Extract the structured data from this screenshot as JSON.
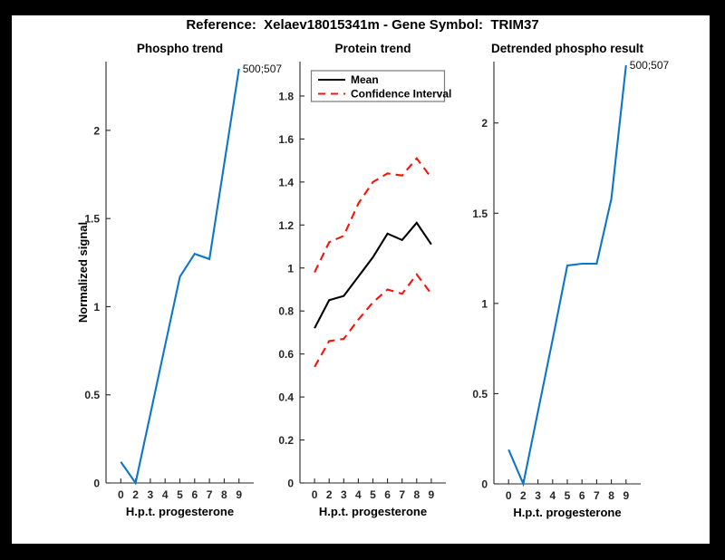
{
  "figure": {
    "title": "Reference:  Xelaev18015341m - Gene Symbol:  TRIM37",
    "background": "#000000",
    "canvas_color": "#ffffff"
  },
  "colors": {
    "blue": "#0d76c9",
    "red": "#f6140c",
    "black": "#000000",
    "axis": "#262626",
    "legend_border": "#7a7a7a"
  },
  "chart_data": [
    {
      "type": "line",
      "title": "Phospho trend",
      "xlabel": "H.p.t. progesterone",
      "ylabel": "Normalized signal",
      "x_tick_labels": [
        "0",
        "2",
        "3",
        "4",
        "5",
        "6",
        "7",
        "8",
        "9"
      ],
      "ylim": [
        0,
        2.39
      ],
      "yticks": {
        "values": [
          0,
          0.5,
          1,
          1.5,
          2
        ],
        "labels": [
          "0",
          "0.5",
          "1",
          "1.5",
          "2"
        ]
      },
      "grid": false,
      "series": [
        {
          "name": "phospho-signal",
          "color": "blue",
          "dash": false,
          "values": [
            0.12,
            0,
            0.39,
            0.78,
            1.17,
            1.3,
            1.27,
            1.81,
            2.35
          ]
        }
      ],
      "annotation": {
        "text": "500;507"
      }
    },
    {
      "type": "line",
      "title": "Protein trend",
      "xlabel": "H.p.t. progesterone",
      "ylabel": "",
      "x_tick_labels": [
        "0",
        "2",
        "3",
        "4",
        "5",
        "6",
        "7",
        "8",
        "9"
      ],
      "ylim": [
        0,
        1.96
      ],
      "yticks": {
        "values": [
          0,
          0.2,
          0.4,
          0.6,
          0.8,
          1,
          1.2,
          1.4,
          1.6,
          1.8
        ],
        "labels": [
          "0",
          "0.2",
          "0.4",
          "0.6",
          "0.8",
          "1",
          "1.2",
          "1.4",
          "1.6",
          "1.8"
        ]
      },
      "grid": false,
      "legend": {
        "position": "top-left",
        "entries": [
          {
            "label": "Mean",
            "color": "black",
            "dash": false
          },
          {
            "label": "Confidence Interval",
            "color": "red",
            "dash": true
          }
        ]
      },
      "series": [
        {
          "name": "mean-line",
          "color": "black",
          "dash": false,
          "values": [
            0.72,
            0.85,
            0.87,
            0.96,
            1.05,
            1.16,
            1.13,
            1.21,
            1.11
          ]
        },
        {
          "name": "confidence-upper-line",
          "color": "red",
          "dash": true,
          "values": [
            0.98,
            1.12,
            1.15,
            1.3,
            1.4,
            1.44,
            1.43,
            1.51,
            1.42
          ]
        },
        {
          "name": "confidence-lower-line",
          "color": "red",
          "dash": true,
          "values": [
            0.54,
            0.66,
            0.67,
            0.76,
            0.84,
            0.9,
            0.88,
            0.97,
            0.88
          ]
        }
      ]
    },
    {
      "type": "line",
      "title": "Detrended phospho result",
      "xlabel": "H.p.t. progesterone",
      "ylabel": "",
      "x_tick_labels": [
        "0",
        "2",
        "3",
        "4",
        "5",
        "6",
        "7",
        "8",
        "9"
      ],
      "ylim": [
        0,
        2.34
      ],
      "yticks": {
        "values": [
          0,
          0.5,
          1,
          1.5,
          2
        ],
        "labels": [
          "0",
          "0.5",
          "1",
          "1.5",
          "2"
        ]
      },
      "grid": false,
      "series": [
        {
          "name": "detrended-phospho-signal",
          "color": "blue",
          "dash": false,
          "values": [
            0.19,
            0,
            0.4,
            0.8,
            1.21,
            1.22,
            1.22,
            1.58,
            2.32
          ]
        }
      ],
      "annotation": {
        "text": "500;507"
      }
    }
  ]
}
